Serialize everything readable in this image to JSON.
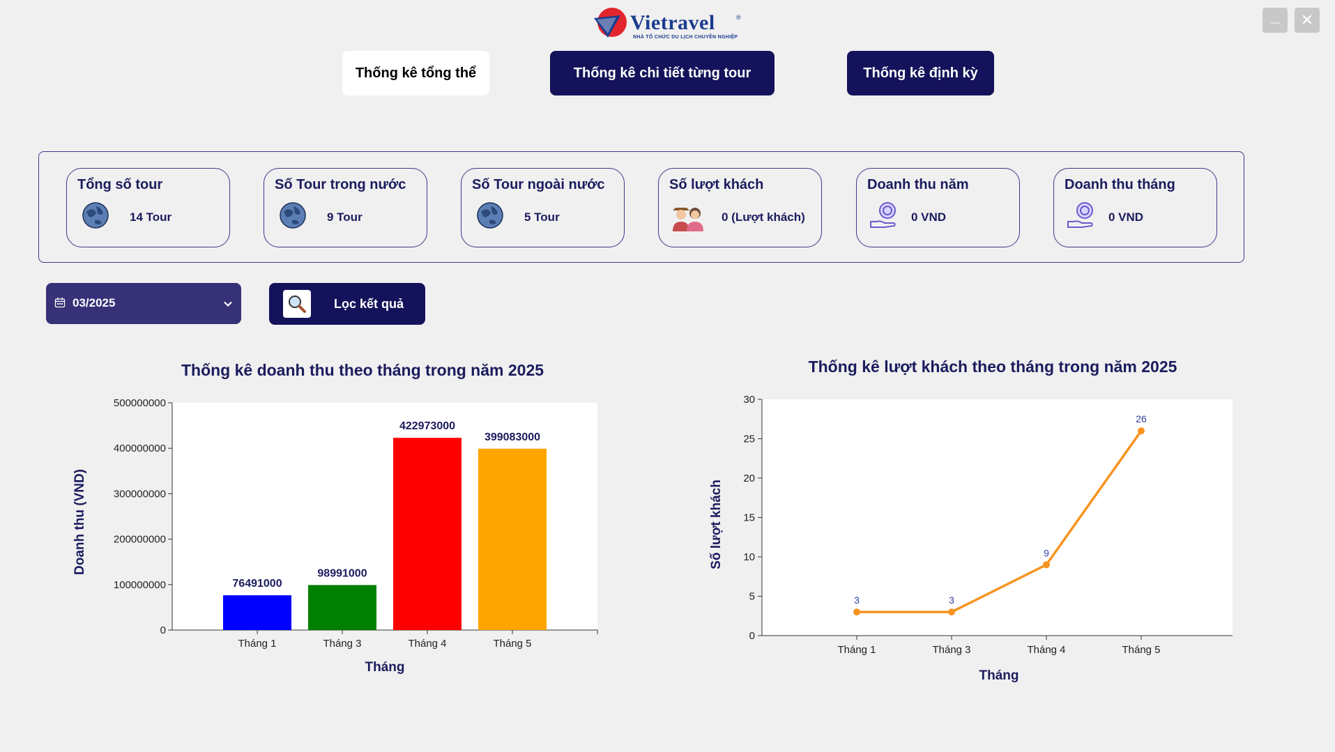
{
  "app": {
    "logo_text": "Vietravel",
    "logo_registered": "®",
    "logo_tagline": "NHÀ TỔ CHỨC DU LỊCH CHUYÊN NGHIỆP",
    "window_min_label": "_",
    "window_close_label": "✕"
  },
  "tabs": [
    {
      "label": "Thống kê tổng thể",
      "active": true
    },
    {
      "label": "Thống kê chi tiết từng tour",
      "active": false
    },
    {
      "label": "Thống kê định kỳ",
      "active": false
    }
  ],
  "cards": [
    {
      "title": "Tổng số tour",
      "value": "14 Tour",
      "icon": "globe-icon"
    },
    {
      "title": "Số Tour trong nước",
      "value": "9 Tour",
      "icon": "globe-icon"
    },
    {
      "title": "Số Tour ngoài nước",
      "value": "5 Tour",
      "icon": "globe-icon"
    },
    {
      "title": "Số lượt khách",
      "value": "0 (Lượt khách)",
      "icon": "travelers-icon"
    },
    {
      "title": "Doanh thu năm",
      "value": "0 VND",
      "icon": "coin-hand-icon"
    },
    {
      "title": "Doanh thu tháng",
      "value": "0 VND",
      "icon": "coin-hand-icon"
    }
  ],
  "filter": {
    "date_value": "03/2025",
    "button_label": "Lọc kết quả"
  },
  "colors": {
    "accent_dark": "#14125a",
    "picker_bg": "#373178",
    "line_series": "#f7931e"
  },
  "chart_data": [
    {
      "type": "bar",
      "title": "Thống kê doanh thu theo tháng trong năm 2025",
      "xlabel": "Tháng",
      "ylabel": "Doanh thu (VND)",
      "categories": [
        "Tháng 1",
        "Tháng 3",
        "Tháng 4",
        "Tháng 5"
      ],
      "values": [
        76491000,
        98991000,
        422973000,
        399083000
      ],
      "bar_colors": [
        "#0000ff",
        "#008000",
        "#ff0000",
        "#ffa500"
      ],
      "ylim": [
        0,
        500000000
      ],
      "yticks": [
        0,
        100000000,
        200000000,
        300000000,
        400000000,
        500000000
      ],
      "ytick_labels": [
        "0",
        "100000000",
        "200000000",
        "300000000",
        "400000000",
        "500000000"
      ],
      "grid": false,
      "legend": "none"
    },
    {
      "type": "line",
      "title": "Thống kê lượt khách theo tháng trong năm 2025",
      "xlabel": "Tháng",
      "ylabel": "Số lượt khách",
      "categories": [
        "Tháng 1",
        "Tháng 3",
        "Tháng 4",
        "Tháng 5"
      ],
      "values": [
        3,
        3,
        9,
        26
      ],
      "ylim": [
        0,
        30
      ],
      "yticks": [
        0,
        5,
        10,
        15,
        20,
        25,
        30
      ],
      "grid": false,
      "legend": "none"
    }
  ]
}
